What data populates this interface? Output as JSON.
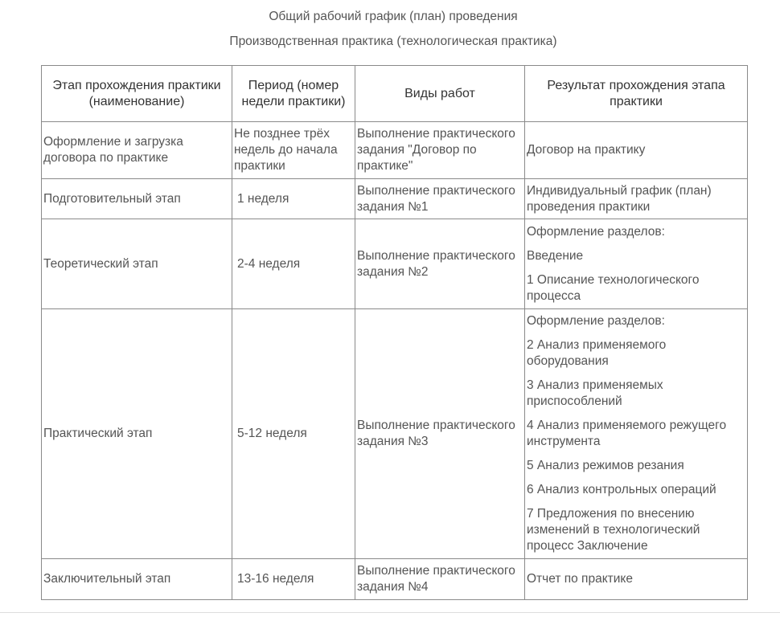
{
  "title": "Общий рабочий график (план) проведения",
  "subtitle": "Производственная практика (технологическая практика)",
  "headers": [
    "Этап прохождения практики (наименование)",
    "Период (номер недели практики)",
    "Виды работ",
    "Результат прохождения этапа практики"
  ],
  "rows": [
    {
      "stage": "Оформление и загрузка договора по практике",
      "period": "Не позднее трёх недель до начала практики",
      "work": "Выполнение практического задания \"Договор по практике\"",
      "result": [
        "Договор на практику"
      ]
    },
    {
      "stage": "Подготовительный этап",
      "period": "1 неделя",
      "work": "Выполнение практического задания №1",
      "result": [
        "Индивидуальный график (план) проведения практики"
      ]
    },
    {
      "stage": "Теоретический этап",
      "period": "2-4 неделя",
      "work": "Выполнение практического задания №2",
      "result": [
        "Оформление разделов:",
        "Введение",
        "1 Описание технологического процесса"
      ]
    },
    {
      "stage": "Практический этап",
      "period": "5-12 неделя",
      "work": "Выполнение практического задания №3",
      "result": [
        "Оформление разделов:",
        "2 Анализ применяемого оборудования",
        "3 Анализ применяемых приспособлений",
        "4 Анализ применяемого режущего инструмента",
        "5 Анализ режимов резания",
        "6 Анализ контрольных операций",
        "7 Предложения по внесению изменений в технологический процесс Заключение"
      ]
    },
    {
      "stage": "Заключительный этап",
      "period": "13-16 неделя",
      "work": "Выполнение практического задания №4",
      "result": [
        "Отчет по практике"
      ]
    }
  ]
}
